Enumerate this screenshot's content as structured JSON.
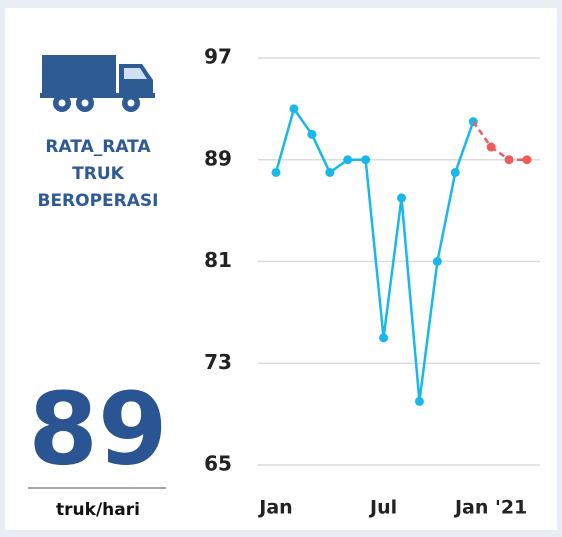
{
  "kpi": {
    "label_lines": [
      "RATA_RATA",
      "TRUK",
      "BEROPERASI"
    ],
    "value": 89,
    "unit": "truk/hari"
  },
  "chart_data": {
    "type": "line",
    "categories": [
      "Jan",
      null,
      null,
      null,
      null,
      null,
      "Jul",
      null,
      null,
      null,
      null,
      null,
      "Jan '21",
      null,
      null
    ],
    "series": [
      {
        "color": "#18b9ea",
        "values": [
          88,
          93,
          91,
          88,
          89,
          89,
          75,
          86,
          70,
          81,
          88,
          92,
          null,
          null,
          null
        ]
      },
      {
        "color": "#f05b5b",
        "dashed": true,
        "values": [
          null,
          null,
          null,
          null,
          null,
          null,
          null,
          null,
          null,
          null,
          null,
          null,
          90,
          89,
          89
        ]
      }
    ],
    "ylim": [
      65,
      97
    ],
    "yticks": [
      65,
      73,
      81,
      89,
      97
    ],
    "grid": true
  }
}
